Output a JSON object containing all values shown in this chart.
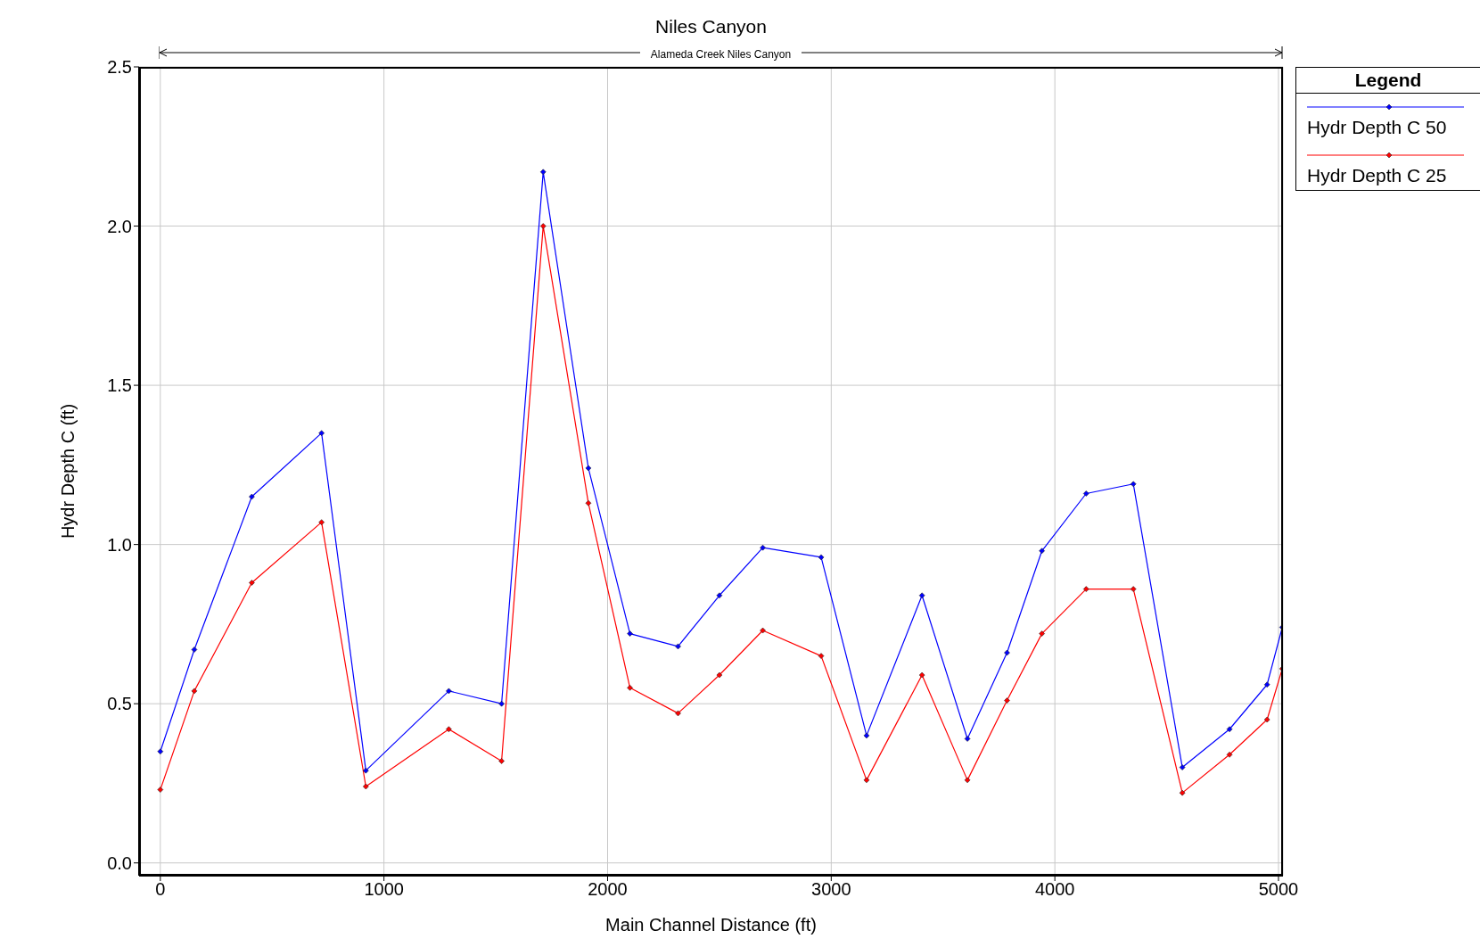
{
  "chart_data": {
    "type": "line",
    "title": "Niles Canyon",
    "annotations": [
      "Alameda Creek Niles Canyon"
    ],
    "xlabel": "Main Channel Distance (ft)",
    "ylabel": "Hydr Depth C (ft)",
    "legend_title": "Legend",
    "x": [
      0,
      152,
      409,
      721,
      919,
      1290,
      1526,
      1712,
      1914,
      2100,
      2315,
      2500,
      2694,
      2955,
      3158,
      3406,
      3609,
      3786,
      3942,
      4140,
      4351,
      4570,
      4781,
      4949,
      5017
    ],
    "series": [
      {
        "name": "Hydr Depth C 50",
        "color": "#0000ff",
        "values": [
          0.35,
          0.67,
          1.15,
          1.35,
          0.29,
          0.54,
          0.5,
          2.17,
          1.24,
          0.72,
          0.68,
          0.84,
          0.99,
          0.96,
          0.4,
          0.84,
          0.39,
          0.66,
          0.98,
          1.16,
          1.19,
          0.3,
          0.42,
          0.56,
          0.74
        ]
      },
      {
        "name": "Hydr Depth C 25",
        "color": "#ff0000",
        "values": [
          0.23,
          0.54,
          0.88,
          1.07,
          0.24,
          0.42,
          0.32,
          2.0,
          1.13,
          0.55,
          0.47,
          0.59,
          0.73,
          0.65,
          0.26,
          0.59,
          0.26,
          0.51,
          0.72,
          0.86,
          0.86,
          0.22,
          0.34,
          0.45,
          0.61
        ]
      }
    ],
    "xlim": [
      -95,
      5020
    ],
    "ylim": [
      -0.04,
      2.5
    ],
    "xticks": [
      0,
      1000,
      2000,
      3000,
      4000,
      5000
    ],
    "yticks": [
      {
        "value": 0,
        "label": "0.0"
      },
      {
        "value": 0.5,
        "label": "0.5"
      },
      {
        "value": 1,
        "label": "1.0"
      },
      {
        "value": 1.5,
        "label": "1.5"
      },
      {
        "value": 2,
        "label": "2.0"
      },
      {
        "value": 2.5,
        "label": "2.5"
      }
    ],
    "grid": true,
    "legend": "top right",
    "marker": "diamond",
    "line_style": "solid"
  }
}
